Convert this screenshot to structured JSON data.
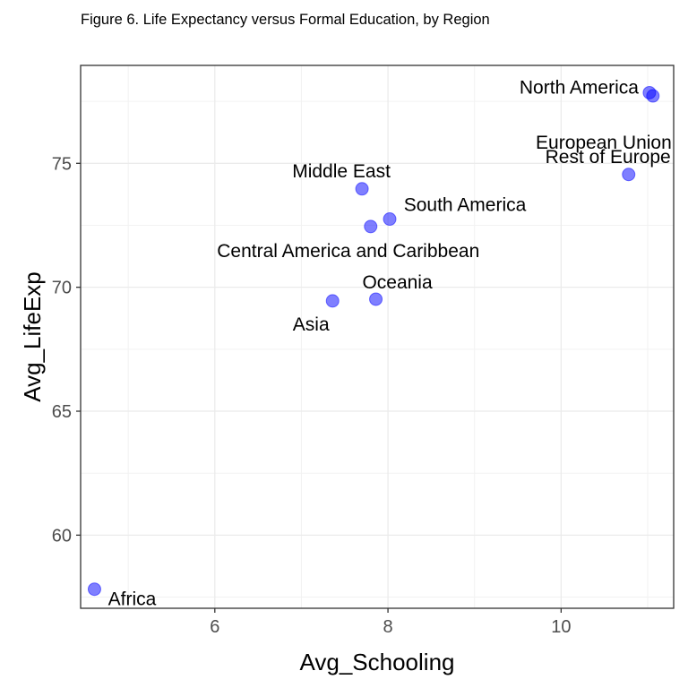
{
  "title": "Figure 6. Life Expectancy versus Formal Education, by Region",
  "chart_data": {
    "type": "scatter",
    "title": "Figure 6. Life Expectancy versus Formal Education, by Region",
    "xlabel": "Avg_Schooling",
    "ylabel": "Avg_LifeExp",
    "xlim": [
      4.45,
      11.3
    ],
    "ylim": [
      57.05,
      78.95
    ],
    "xticks": [
      6,
      8,
      10
    ],
    "yticks": [
      60,
      65,
      70,
      75
    ],
    "grid": true,
    "point_color": "#0000ff",
    "points": [
      {
        "label": "North America",
        "x": 11.02,
        "y": 77.85
      },
      {
        "label": "European Union",
        "x": 11.06,
        "y": 77.72
      },
      {
        "label": "Rest of Europe",
        "x": 10.78,
        "y": 74.55
      },
      {
        "label": "Middle East",
        "x": 7.7,
        "y": 73.97
      },
      {
        "label": "South America",
        "x": 8.02,
        "y": 72.75
      },
      {
        "label": "Central America and Caribbean",
        "x": 7.8,
        "y": 72.45
      },
      {
        "label": "Oceania",
        "x": 7.86,
        "y": 69.52
      },
      {
        "label": "Asia",
        "x": 7.36,
        "y": 69.45
      },
      {
        "label": "Africa",
        "x": 4.61,
        "y": 57.82
      }
    ]
  }
}
